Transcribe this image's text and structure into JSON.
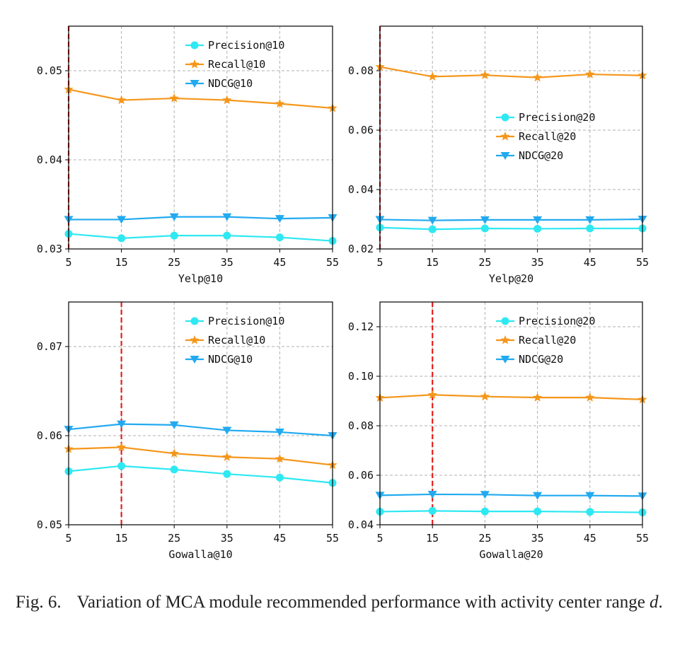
{
  "caption": {
    "label": "Fig. 6.",
    "text": "Variation of MCA module recommended performance with activity center range ",
    "variable": "d",
    "end": "."
  },
  "colors": {
    "precision": "#2ee8f2",
    "recall": "#f5961a",
    "ndcg": "#22aaf0",
    "marker_line": "#e81c1c",
    "grid": "#b0b0b0"
  },
  "chart_data": [
    {
      "type": "line",
      "xlabel": "Yelp@10",
      "x": [
        5,
        15,
        25,
        35,
        45,
        55
      ],
      "xticks": [
        "5",
        "15",
        "25",
        "35",
        "45",
        "55"
      ],
      "ylim": [
        0.03,
        0.055
      ],
      "yticks": [
        0.03,
        0.04,
        0.05
      ],
      "ytick_labels": [
        "0.03",
        "0.04",
        "0.05"
      ],
      "grid": true,
      "legend_position": "top-right",
      "vline_x": 5,
      "series": [
        {
          "name": "Precision@10",
          "marker": "circle",
          "values": [
            0.0317,
            0.0312,
            0.0315,
            0.0315,
            0.0313,
            0.0309
          ]
        },
        {
          "name": "Recall@10",
          "marker": "star",
          "values": [
            0.0479,
            0.0467,
            0.0469,
            0.0467,
            0.0463,
            0.0458
          ]
        },
        {
          "name": "NDCG@10",
          "marker": "triangle-down",
          "values": [
            0.0333,
            0.0333,
            0.0336,
            0.0336,
            0.0334,
            0.0335
          ]
        }
      ]
    },
    {
      "type": "line",
      "xlabel": "Yelp@20",
      "x": [
        5,
        15,
        25,
        35,
        45,
        55
      ],
      "xticks": [
        "5",
        "15",
        "25",
        "35",
        "45",
        "55"
      ],
      "ylim": [
        0.02,
        0.095
      ],
      "yticks": [
        0.02,
        0.04,
        0.06,
        0.08
      ],
      "ytick_labels": [
        "0.02",
        "0.04",
        "0.06",
        "0.08"
      ],
      "grid": true,
      "legend_position": "center-right",
      "vline_x": 5,
      "series": [
        {
          "name": "Precision@20",
          "marker": "circle",
          "values": [
            0.0272,
            0.0266,
            0.0269,
            0.0268,
            0.0269,
            0.0269
          ]
        },
        {
          "name": "Recall@20",
          "marker": "star",
          "values": [
            0.0813,
            0.078,
            0.0785,
            0.0777,
            0.0788,
            0.0784
          ]
        },
        {
          "name": "NDCG@20",
          "marker": "triangle-down",
          "values": [
            0.0299,
            0.0296,
            0.0298,
            0.0298,
            0.0298,
            0.03
          ]
        }
      ]
    },
    {
      "type": "line",
      "xlabel": "Gowalla@10",
      "x": [
        5,
        15,
        25,
        35,
        45,
        55
      ],
      "xticks": [
        "5",
        "15",
        "25",
        "35",
        "45",
        "55"
      ],
      "ylim": [
        0.05,
        0.075
      ],
      "yticks": [
        0.05,
        0.06,
        0.07
      ],
      "ytick_labels": [
        "0.05",
        "0.06",
        "0.07"
      ],
      "grid": true,
      "legend_position": "top-right",
      "vline_x": 15,
      "series": [
        {
          "name": "Precision@10",
          "marker": "circle",
          "values": [
            0.056,
            0.0566,
            0.0562,
            0.0557,
            0.0553,
            0.0547
          ]
        },
        {
          "name": "Recall@10",
          "marker": "star",
          "values": [
            0.0585,
            0.0587,
            0.058,
            0.0576,
            0.0574,
            0.0567
          ]
        },
        {
          "name": "NDCG@10",
          "marker": "triangle-down",
          "values": [
            0.0607,
            0.0613,
            0.0612,
            0.0606,
            0.0604,
            0.06
          ]
        }
      ]
    },
    {
      "type": "line",
      "xlabel": "Gowalla@20",
      "x": [
        5,
        15,
        25,
        35,
        45,
        55
      ],
      "xticks": [
        "5",
        "15",
        "25",
        "35",
        "45",
        "55"
      ],
      "ylim": [
        0.04,
        0.13
      ],
      "yticks": [
        0.04,
        0.06,
        0.08,
        0.1,
        0.12
      ],
      "ytick_labels": [
        "0.04",
        "0.06",
        "0.08",
        "0.10",
        "0.12"
      ],
      "grid": true,
      "legend_position": "top-right",
      "vline_x": 15,
      "series": [
        {
          "name": "Precision@20",
          "marker": "circle",
          "values": [
            0.0453,
            0.0456,
            0.0454,
            0.0454,
            0.0452,
            0.045
          ]
        },
        {
          "name": "Recall@20",
          "marker": "star",
          "values": [
            0.0913,
            0.0925,
            0.0918,
            0.0914,
            0.0914,
            0.0906
          ]
        },
        {
          "name": "NDCG@20",
          "marker": "triangle-down",
          "values": [
            0.0519,
            0.0523,
            0.0522,
            0.0518,
            0.0518,
            0.0516
          ]
        }
      ]
    }
  ]
}
